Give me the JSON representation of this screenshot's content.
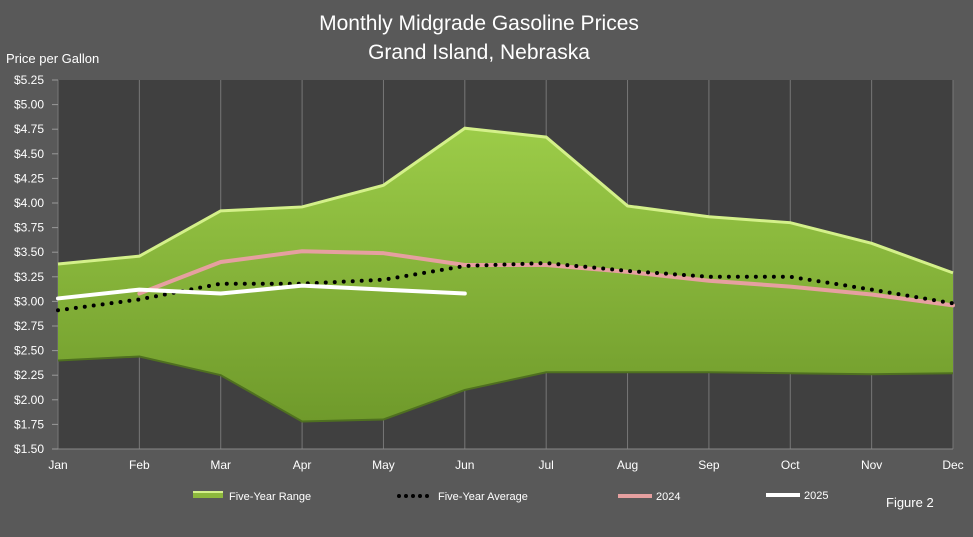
{
  "chart_data": {
    "type": "area",
    "title": [
      "Monthly Midgrade Gasoline Prices",
      "Grand Island, Nebraska"
    ],
    "ylabel": "Price per Gallon",
    "xlabel": "",
    "ylim": [
      1.5,
      5.25
    ],
    "yticks": [
      "$1.50",
      "$1.75",
      "$2.00",
      "$2.25",
      "$2.50",
      "$2.75",
      "$3.00",
      "$3.25",
      "$3.50",
      "$3.75",
      "$4.00",
      "$4.25",
      "$4.50",
      "$4.75",
      "$5.00",
      "$5.25"
    ],
    "ytick_values": [
      1.5,
      1.75,
      2.0,
      2.25,
      2.5,
      2.75,
      3.0,
      3.25,
      3.5,
      3.75,
      4.0,
      4.25,
      4.5,
      4.75,
      5.0,
      5.25
    ],
    "categories": [
      "Jan",
      "Feb",
      "Mar",
      "Apr",
      "May",
      "Jun",
      "Jul",
      "Aug",
      "Sep",
      "Oct",
      "Nov",
      "Dec"
    ],
    "grid": "vertical",
    "legend_position": "bottom",
    "range": {
      "name": "Five-Year Range",
      "color": "#8db83d",
      "high": [
        3.38,
        3.46,
        3.92,
        3.96,
        4.18,
        4.76,
        4.67,
        3.97,
        3.86,
        3.8,
        3.59,
        3.29
      ],
      "low": [
        2.4,
        2.44,
        2.25,
        1.78,
        1.8,
        2.1,
        2.28,
        2.28,
        2.28,
        2.27,
        2.26,
        2.27
      ]
    },
    "series": [
      {
        "name": "Five-Year Average",
        "style": "dotted",
        "color": "#000000",
        "values": [
          2.91,
          3.02,
          3.18,
          3.18,
          3.22,
          3.36,
          3.39,
          3.31,
          3.25,
          3.25,
          3.12,
          2.98
        ]
      },
      {
        "name": "2024",
        "style": "solid",
        "color": "#e6a0a0",
        "values": [
          null,
          3.08,
          3.4,
          3.51,
          3.49,
          3.37,
          3.37,
          3.3,
          3.21,
          3.15,
          3.07,
          2.96
        ]
      },
      {
        "name": "2025",
        "style": "solid",
        "color": "#ffffff",
        "values": [
          3.03,
          3.12,
          3.08,
          3.16,
          3.12,
          3.08,
          null,
          null,
          null,
          null,
          null,
          null
        ]
      }
    ],
    "annotation": "Figure 2"
  }
}
